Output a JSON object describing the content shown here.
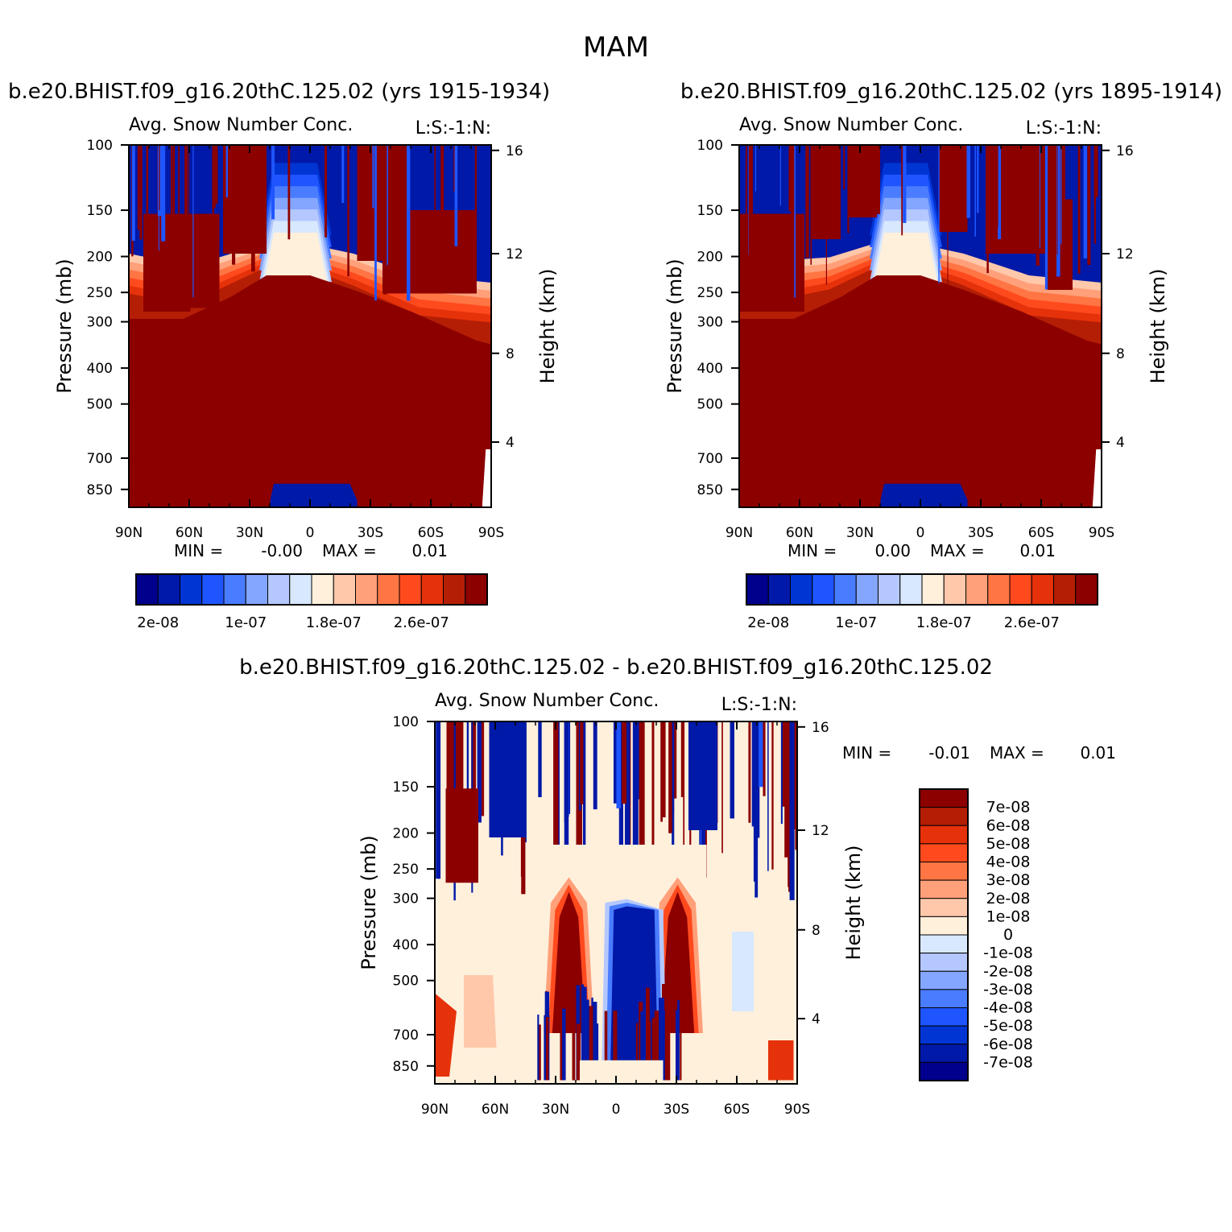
{
  "figure_title": "MAM",
  "colors": {
    "seq_scale": [
      "#00008c",
      "#0019a8",
      "#0035d4",
      "#1e55ff",
      "#4a7cff",
      "#84a6ff",
      "#b4c8ff",
      "#d8e8ff",
      "#fff0dc",
      "#ffc8aa",
      "#ffa07a",
      "#ff7544",
      "#ff4a1e",
      "#e6320a",
      "#b41e05",
      "#8c0000"
    ],
    "diff_scale": [
      "#00008c",
      "#0019a8",
      "#0035d4",
      "#1e55ff",
      "#4a7cff",
      "#84a6ff",
      "#b4c8ff",
      "#d8e8ff",
      "#fff0dc",
      "#ffc8aa",
      "#ffa07a",
      "#ff7544",
      "#ff4a1e",
      "#e6320a",
      "#b41e05",
      "#8c0000"
    ]
  },
  "chart_data": [
    {
      "type": "heatmap",
      "subtitle": "b.e20.BHIST.f09_g16.20thC.125.02 (yrs 1915-1934)",
      "title": "Avg. Snow Number Conc.",
      "right_title": "L:S:-1:N:",
      "xlabel": "",
      "ylabel": "Pressure (mb)",
      "y2label": "Height (km)",
      "x_ticks": [
        "90N",
        "60N",
        "30N",
        "0",
        "30S",
        "60S",
        "90S"
      ],
      "y_ticks": [
        "100",
        "150",
        "200",
        "250",
        "300",
        "400",
        "500",
        "700",
        "850"
      ],
      "y2_ticks": [
        "16",
        "12",
        "8",
        "4"
      ],
      "stats": {
        "min_label": "MIN =",
        "min_value": "-0.00",
        "max_label": "MAX =",
        "max_value": "0.01"
      },
      "colorbar_labels": [
        "2e-08",
        "1e-07",
        "1.8e-07",
        "2.6e-07"
      ]
    },
    {
      "type": "heatmap",
      "subtitle": "b.e20.BHIST.f09_g16.20thC.125.02 (yrs 1895-1914)",
      "title": "Avg. Snow Number Conc.",
      "right_title": "L:S:-1:N:",
      "xlabel": "",
      "ylabel": "Pressure (mb)",
      "y2label": "Height (km)",
      "x_ticks": [
        "90N",
        "60N",
        "30N",
        "0",
        "30S",
        "60S",
        "90S"
      ],
      "y_ticks": [
        "100",
        "150",
        "200",
        "250",
        "300",
        "400",
        "500",
        "700",
        "850"
      ],
      "y2_ticks": [
        "16",
        "12",
        "8",
        "4"
      ],
      "stats": {
        "min_label": "MIN =",
        "min_value": "0.00",
        "max_label": "MAX =",
        "max_value": "0.01"
      },
      "colorbar_labels": [
        "2e-08",
        "1e-07",
        "1.8e-07",
        "2.6e-07"
      ]
    },
    {
      "type": "heatmap",
      "subtitle": "b.e20.BHIST.f09_g16.20thC.125.02 - b.e20.BHIST.f09_g16.20thC.125.02",
      "title": "Avg. Snow Number Conc.",
      "right_title": "L:S:-1:N:",
      "xlabel": "",
      "ylabel": "Pressure (mb)",
      "y2label": "Height (km)",
      "x_ticks": [
        "90N",
        "60N",
        "30N",
        "0",
        "30S",
        "60S",
        "90S"
      ],
      "y_ticks": [
        "100",
        "150",
        "200",
        "250",
        "300",
        "400",
        "500",
        "700",
        "850"
      ],
      "y2_ticks": [
        "16",
        "12",
        "8",
        "4"
      ],
      "stats": {
        "min_label": "MIN =",
        "min_value": "-0.01",
        "max_label": "MAX =",
        "max_value": "0.01"
      },
      "colorbar_labels": [
        "7e-08",
        "6e-08",
        "5e-08",
        "4e-08",
        "3e-08",
        "2e-08",
        "1e-08",
        "0",
        "-1e-08",
        "-2e-08",
        "-3e-08",
        "-4e-08",
        "-5e-08",
        "-6e-08",
        "-7e-08"
      ]
    }
  ]
}
